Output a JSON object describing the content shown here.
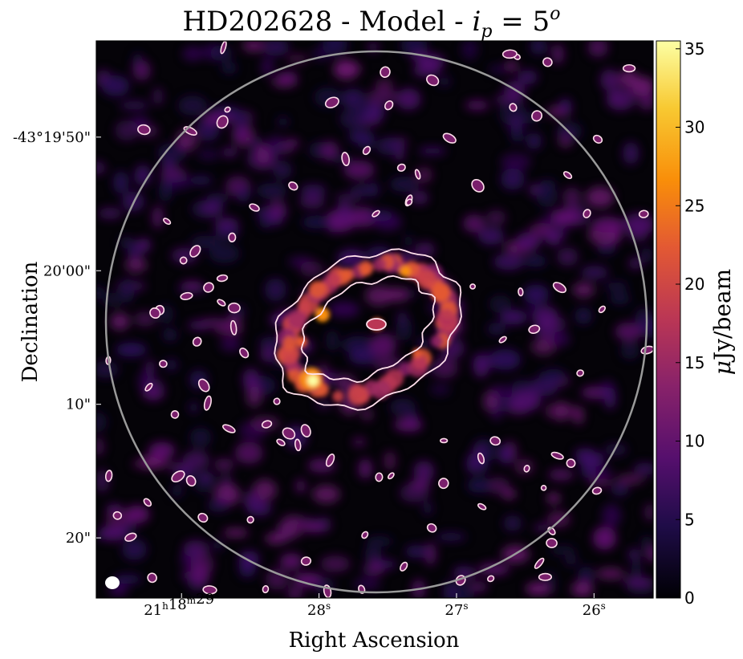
{
  "chart_data": {
    "type": "heatmap",
    "title_prefix": "HD202628 - Model - ",
    "title_math": "i",
    "title_sub": "p",
    "title_eq": " = 5",
    "title_sup": "o",
    "xlabel": "Right Ascension",
    "ylabel": "Declination",
    "x_ticks": [
      {
        "h": "21",
        "m": "18",
        "s": "29"
      },
      {
        "h": "",
        "m": "",
        "s": "28"
      },
      {
        "h": "",
        "m": "",
        "s": "27"
      },
      {
        "h": "",
        "m": "",
        "s": "26"
      }
    ],
    "x_tick_values_sec": [
      29,
      28,
      27,
      26
    ],
    "x_range_sec": [
      29.62,
      25.57
    ],
    "y_ticks": [
      "-43°19'50\"",
      "20'00\"",
      "10\"",
      "20\""
    ],
    "y_tick_values_arcsec": [
      -10,
      0,
      10,
      20
    ],
    "y_range_arcsec": [
      -17.2,
      24.5
    ],
    "colorbar": {
      "label_mu": "μ",
      "label_rest": "Jy/beam",
      "ticks": [
        0,
        5,
        10,
        15,
        20,
        25,
        30,
        35
      ],
      "range": [
        0,
        35.5
      ],
      "colormap": "inferno"
    },
    "features": {
      "ring": "elliptical debris ring of emission, peak ~35 μJy/beam at south-east side",
      "central_source": "compact point source near ring centre",
      "primary_beam_circle": "grey circle marking field of view",
      "beam": "white filled ellipse at lower-left"
    }
  },
  "colors": {
    "background": "#000004",
    "contour": "#ffe0ec",
    "circle": "#9a9a9a"
  }
}
